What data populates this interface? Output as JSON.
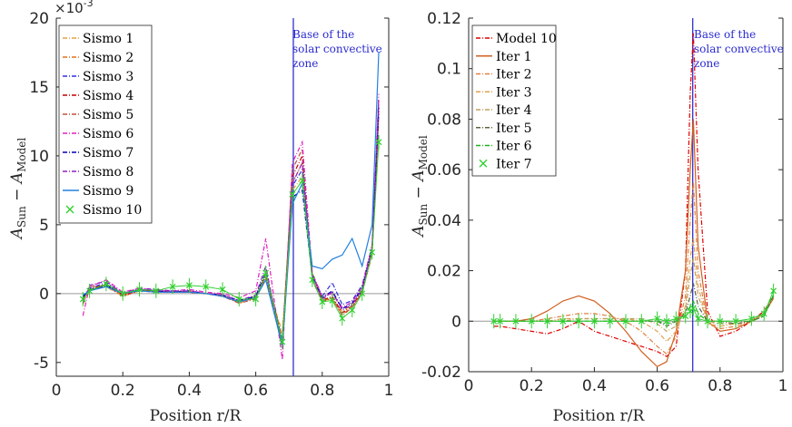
{
  "chart_data": [
    {
      "type": "line",
      "panel": "left",
      "xlabel": "Position r/R",
      "ylabel_main": "A",
      "ylabel_sub1": "Sun",
      "ylabel_mid": " − A",
      "ylabel_sub2": "Model",
      "multiplier": "×10",
      "multiplier_exp": "-3",
      "xlim": [
        0,
        1
      ],
      "ylim": [
        -6,
        20
      ],
      "xticks": [
        0,
        0.2,
        0.4,
        0.6,
        0.8,
        1
      ],
      "xtick_labels": [
        "0",
        "0.2",
        "0.4",
        "0.6",
        "0.8",
        "1"
      ],
      "yticks": [
        -5,
        0,
        5,
        10,
        15,
        20
      ],
      "ytick_labels": [
        "-5",
        "0",
        "5",
        "10",
        "15",
        "20"
      ],
      "vline_x": 0.713,
      "annotation": [
        "Base of the",
        "solar convective",
        "zone"
      ],
      "series": [
        {
          "name": "Sismo 1",
          "color": "#e8a040",
          "style": "dashdot",
          "values": [
            -0.8,
            0.3,
            0.5,
            -0.2,
            0.2,
            0.2,
            0.1,
            0.1,
            0.0,
            -0.1,
            -0.7,
            -0.3,
            1.0,
            -2.8,
            7.5,
            8.5,
            1.2,
            -0.5,
            -0.4,
            -1.3,
            -0.8,
            0.3,
            3.0,
            11.5
          ]
        },
        {
          "name": "Sismo 2",
          "color": "#e07020",
          "style": "dashdot",
          "values": [
            -0.6,
            0.5,
            0.6,
            -0.1,
            0.3,
            0.2,
            0.1,
            0.2,
            0.0,
            -0.1,
            -0.6,
            -0.2,
            1.5,
            -3.2,
            8.0,
            9.5,
            1.5,
            -0.3,
            -0.5,
            -1.5,
            -1.0,
            0.1,
            2.8,
            12.5
          ]
        },
        {
          "name": "Sismo 3",
          "color": "#3030e0",
          "style": "dashdot",
          "values": [
            -0.3,
            0.4,
            0.8,
            0.0,
            0.3,
            0.2,
            0.2,
            0.1,
            0.0,
            -0.1,
            -0.5,
            -0.3,
            1.4,
            -3.4,
            7.8,
            9.0,
            1.3,
            -0.2,
            0.8,
            -0.8,
            -0.5,
            0.6,
            3.5,
            13.0
          ]
        },
        {
          "name": "Sismo 4",
          "color": "#c00000",
          "style": "dashdot",
          "values": [
            -0.4,
            0.3,
            0.7,
            -0.1,
            0.2,
            0.2,
            0.1,
            0.1,
            0.0,
            -0.2,
            -0.6,
            -0.3,
            1.3,
            -3.6,
            8.5,
            10.0,
            1.0,
            -0.5,
            -0.2,
            -1.4,
            -0.9,
            0.2,
            3.2,
            13.5
          ]
        },
        {
          "name": "Sismo 5",
          "color": "#c05040",
          "style": "dashdot",
          "values": [
            -0.5,
            0.2,
            0.6,
            -0.2,
            0.2,
            0.1,
            0.1,
            0.1,
            0.0,
            -0.2,
            -0.7,
            -0.4,
            1.2,
            -3.8,
            9.0,
            10.5,
            1.0,
            -0.6,
            -0.3,
            -1.6,
            -1.0,
            0.0,
            3.0,
            14.0
          ]
        },
        {
          "name": "Sismo 6",
          "color": "#e020c0",
          "style": "dashdot",
          "values": [
            -1.6,
            0.5,
            1.0,
            0.1,
            0.4,
            0.2,
            0.2,
            0.3,
            0.1,
            0.0,
            -0.3,
            0.2,
            4.0,
            -4.8,
            9.5,
            11.0,
            1.5,
            -0.2,
            0.0,
            -1.0,
            -0.6,
            0.5,
            3.5,
            14.5
          ]
        },
        {
          "name": "Sismo 7",
          "color": "#0000b0",
          "style": "dashdot",
          "values": [
            -0.2,
            0.3,
            0.6,
            0.0,
            0.3,
            0.2,
            0.1,
            0.2,
            0.0,
            -0.1,
            -0.5,
            -0.2,
            1.6,
            -3.5,
            7.0,
            7.5,
            1.2,
            -0.3,
            0.2,
            -1.1,
            -0.7,
            0.4,
            3.2,
            13.5
          ]
        },
        {
          "name": "Sismo 8",
          "color": "#9020c0",
          "style": "dashdot",
          "values": [
            -0.7,
            0.6,
            0.9,
            0.0,
            0.4,
            0.3,
            0.2,
            0.2,
            0.0,
            -0.1,
            -0.5,
            -0.1,
            2.0,
            -4.0,
            8.0,
            9.5,
            1.4,
            -0.4,
            0.1,
            -1.2,
            -0.8,
            0.3,
            3.3,
            14.0
          ]
        },
        {
          "name": "Sismo 9",
          "color": "#2080e0",
          "style": "solid",
          "values": [
            -0.1,
            0.2,
            0.5,
            0.0,
            0.2,
            0.1,
            0.1,
            0.1,
            0.0,
            -0.2,
            -0.6,
            -0.3,
            1.0,
            -3.8,
            6.5,
            8.0,
            2.0,
            1.8,
            2.5,
            2.8,
            4.0,
            2.0,
            5.0,
            17.5
          ]
        },
        {
          "name": "Sismo 10",
          "color": "#30d030",
          "style": "markers",
          "values": [
            -0.4,
            0.2,
            0.7,
            0.0,
            0.3,
            0.2,
            0.5,
            0.6,
            0.5,
            0.3,
            -0.4,
            -0.4,
            1.5,
            -3.5,
            7.2,
            8.2,
            1.0,
            -0.6,
            -0.5,
            -1.8,
            -1.2,
            0.0,
            3.0,
            11.0
          ]
        }
      ],
      "x": [
        0.08,
        0.1,
        0.15,
        0.2,
        0.25,
        0.3,
        0.35,
        0.4,
        0.45,
        0.5,
        0.55,
        0.6,
        0.63,
        0.68,
        0.71,
        0.74,
        0.77,
        0.8,
        0.83,
        0.86,
        0.89,
        0.92,
        0.95,
        0.97
      ]
    },
    {
      "type": "line",
      "panel": "right",
      "xlabel": "Position r/R",
      "ylabel_main": "A",
      "ylabel_sub1": "Sun",
      "ylabel_mid": " − A",
      "ylabel_sub2": "Model",
      "xlim": [
        0,
        1
      ],
      "ylim": [
        -0.02,
        0.12
      ],
      "xticks": [
        0,
        0.2,
        0.4,
        0.6,
        0.8,
        1
      ],
      "xtick_labels": [
        "0",
        "0.2",
        "0.4",
        "0.6",
        "0.8",
        "1"
      ],
      "yticks": [
        -0.02,
        0,
        0.02,
        0.04,
        0.06,
        0.08,
        0.1,
        0.12
      ],
      "ytick_labels": [
        "-0.02",
        "0",
        "0.02",
        "0.04",
        "0.06",
        "0.08",
        "0.1",
        "0.12"
      ],
      "vline_x": 0.713,
      "annotation": [
        "Base of the",
        "solar convective",
        "zone"
      ],
      "series": [
        {
          "name": "Model 10",
          "color": "#e00000",
          "style": "dashdot",
          "values": [
            -0.002,
            -0.002,
            -0.003,
            -0.004,
            -0.005,
            -0.003,
            0.0,
            -0.004,
            -0.006,
            -0.008,
            -0.01,
            -0.012,
            -0.014,
            -0.01,
            0.02,
            0.09,
            0.114,
            0.06,
            0.004,
            -0.006,
            -0.004,
            0.0,
            0.004,
            0.01
          ]
        },
        {
          "name": "Iter 1",
          "color": "#d06020",
          "style": "solid",
          "values": [
            0.0,
            0.0,
            0.0,
            0.001,
            0.004,
            0.008,
            0.01,
            0.008,
            0.003,
            -0.004,
            -0.012,
            -0.018,
            -0.016,
            -0.004,
            0.02,
            0.06,
            0.08,
            0.03,
            0.0,
            -0.004,
            -0.003,
            0.0,
            0.003,
            0.009
          ]
        },
        {
          "name": "Iter 2",
          "color": "#e08040",
          "style": "dashdot",
          "values": [
            0.0,
            0.0,
            0.0,
            0.0,
            0.001,
            0.002,
            0.003,
            0.003,
            0.002,
            0.0,
            -0.004,
            -0.01,
            -0.013,
            -0.006,
            0.01,
            0.04,
            0.055,
            0.02,
            -0.001,
            -0.003,
            -0.002,
            0.0,
            0.003,
            0.009
          ]
        },
        {
          "name": "Iter 3",
          "color": "#e0a050",
          "style": "dashdot",
          "values": [
            0.0,
            0.0,
            0.0,
            0.0,
            0.0,
            0.001,
            0.001,
            0.001,
            0.001,
            0.001,
            0.0,
            -0.004,
            -0.008,
            -0.004,
            0.006,
            0.025,
            0.033,
            0.014,
            -0.001,
            -0.002,
            -0.001,
            0.0,
            0.003,
            0.01
          ]
        },
        {
          "name": "Iter 4",
          "color": "#c0a060",
          "style": "dashdot",
          "values": [
            0.0,
            0.0,
            0.0,
            0.0,
            0.0,
            0.0,
            0.001,
            0.001,
            0.001,
            0.001,
            0.001,
            -0.001,
            -0.004,
            -0.002,
            0.004,
            0.018,
            0.025,
            0.01,
            0.0,
            -0.001,
            -0.001,
            0.0,
            0.003,
            0.01
          ]
        },
        {
          "name": "Iter 5",
          "color": "#606040",
          "style": "dashdot",
          "values": [
            0.0,
            0.0,
            0.0,
            0.0,
            0.0,
            0.0,
            0.0,
            0.0,
            0.0,
            0.0,
            0.0,
            0.0,
            -0.002,
            0.0,
            0.003,
            0.01,
            0.015,
            0.006,
            0.0,
            0.0,
            -0.001,
            0.0,
            0.002,
            0.01
          ]
        },
        {
          "name": "Iter 6",
          "color": "#20b020",
          "style": "dashdot",
          "values": [
            0.0,
            0.0,
            0.0,
            0.0,
            0.0,
            0.0,
            0.0,
            0.0,
            0.0,
            0.0,
            0.0,
            0.0,
            -0.001,
            0.0,
            0.002,
            0.006,
            0.008,
            0.003,
            0.0,
            0.0,
            0.0,
            0.0,
            0.002,
            0.011
          ]
        },
        {
          "name": "Iter 7",
          "color": "#30d030",
          "style": "markers",
          "values": [
            0.0,
            0.0,
            0.0,
            0.0,
            0.0,
            0.0,
            0.0,
            0.0,
            0.0,
            0.0,
            0.0,
            0.001,
            0.0,
            0.001,
            0.002,
            0.004,
            0.005,
            0.001,
            0.0,
            0.0,
            0.0,
            0.001,
            0.003,
            0.012
          ]
        }
      ],
      "x": [
        0.08,
        0.1,
        0.15,
        0.2,
        0.25,
        0.3,
        0.35,
        0.4,
        0.45,
        0.5,
        0.55,
        0.6,
        0.63,
        0.66,
        0.69,
        0.705,
        0.715,
        0.73,
        0.76,
        0.8,
        0.85,
        0.9,
        0.94,
        0.97
      ]
    }
  ]
}
